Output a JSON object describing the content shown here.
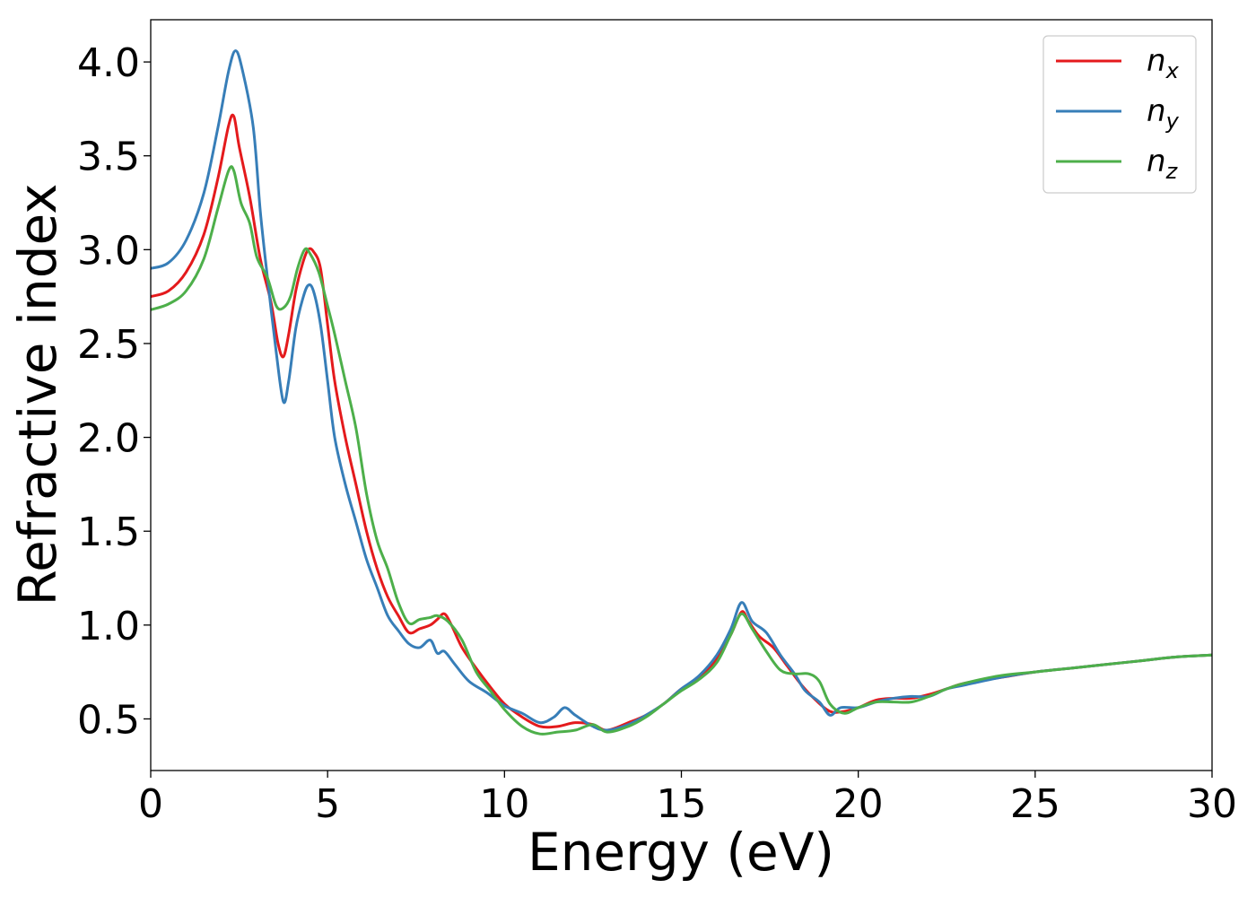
{
  "chart_data": {
    "type": "line",
    "xlabel": "Energy (eV)",
    "ylabel": "Refractive index",
    "xlim": [
      0,
      30
    ],
    "ylim": [
      0.225,
      4.225
    ],
    "xticks": [
      0,
      5,
      10,
      15,
      20,
      25,
      30
    ],
    "yticks": [
      0.5,
      1.0,
      1.5,
      2.0,
      2.5,
      3.0,
      3.5,
      4.0
    ],
    "grid": false,
    "legend_position": "top-right",
    "series": [
      {
        "name": "n",
        "subscript": "x",
        "color": "#e41a1c",
        "points": [
          [
            0,
            2.75
          ],
          [
            0.5,
            2.78
          ],
          [
            1.0,
            2.88
          ],
          [
            1.5,
            3.08
          ],
          [
            1.9,
            3.38
          ],
          [
            2.2,
            3.66
          ],
          [
            2.35,
            3.71
          ],
          [
            2.5,
            3.55
          ],
          [
            2.8,
            3.28
          ],
          [
            3.1,
            2.95
          ],
          [
            3.4,
            2.72
          ],
          [
            3.6,
            2.5
          ],
          [
            3.75,
            2.43
          ],
          [
            3.9,
            2.55
          ],
          [
            4.1,
            2.78
          ],
          [
            4.3,
            2.93
          ],
          [
            4.45,
            3.0
          ],
          [
            4.6,
            2.99
          ],
          [
            4.8,
            2.9
          ],
          [
            5.0,
            2.6
          ],
          [
            5.2,
            2.3
          ],
          [
            5.5,
            2.0
          ],
          [
            5.8,
            1.75
          ],
          [
            6.1,
            1.5
          ],
          [
            6.4,
            1.3
          ],
          [
            6.7,
            1.15
          ],
          [
            7.0,
            1.05
          ],
          [
            7.3,
            0.96
          ],
          [
            7.6,
            0.98
          ],
          [
            7.9,
            1.0
          ],
          [
            8.1,
            1.03
          ],
          [
            8.3,
            1.06
          ],
          [
            8.5,
            1.0
          ],
          [
            8.8,
            0.88
          ],
          [
            9.2,
            0.77
          ],
          [
            9.6,
            0.67
          ],
          [
            10.0,
            0.58
          ],
          [
            10.5,
            0.51
          ],
          [
            11.0,
            0.46
          ],
          [
            11.5,
            0.46
          ],
          [
            12.0,
            0.48
          ],
          [
            12.5,
            0.47
          ],
          [
            12.9,
            0.44
          ],
          [
            13.5,
            0.48
          ],
          [
            14.0,
            0.52
          ],
          [
            14.5,
            0.58
          ],
          [
            15.0,
            0.66
          ],
          [
            15.5,
            0.72
          ],
          [
            16.0,
            0.82
          ],
          [
            16.4,
            0.95
          ],
          [
            16.7,
            1.07
          ],
          [
            16.9,
            1.02
          ],
          [
            17.2,
            0.94
          ],
          [
            17.6,
            0.88
          ],
          [
            18.0,
            0.78
          ],
          [
            18.4,
            0.68
          ],
          [
            18.8,
            0.6
          ],
          [
            19.2,
            0.54
          ],
          [
            19.6,
            0.54
          ],
          [
            20.0,
            0.56
          ],
          [
            20.5,
            0.6
          ],
          [
            21.0,
            0.61
          ],
          [
            21.5,
            0.61
          ],
          [
            22.0,
            0.63
          ],
          [
            22.5,
            0.66
          ],
          [
            23.0,
            0.69
          ],
          [
            24.0,
            0.72
          ],
          [
            25.0,
            0.75
          ],
          [
            26.0,
            0.77
          ],
          [
            27.0,
            0.79
          ],
          [
            28.0,
            0.81
          ],
          [
            29.0,
            0.83
          ],
          [
            30.0,
            0.84
          ]
        ]
      },
      {
        "name": "n",
        "subscript": "y",
        "color": "#377eb8",
        "points": [
          [
            0,
            2.9
          ],
          [
            0.5,
            2.93
          ],
          [
            1.0,
            3.05
          ],
          [
            1.5,
            3.3
          ],
          [
            1.9,
            3.65
          ],
          [
            2.2,
            3.95
          ],
          [
            2.4,
            4.06
          ],
          [
            2.6,
            3.95
          ],
          [
            2.9,
            3.65
          ],
          [
            3.1,
            3.2
          ],
          [
            3.3,
            2.85
          ],
          [
            3.55,
            2.45
          ],
          [
            3.75,
            2.19
          ],
          [
            3.9,
            2.3
          ],
          [
            4.1,
            2.58
          ],
          [
            4.3,
            2.74
          ],
          [
            4.45,
            2.81
          ],
          [
            4.6,
            2.78
          ],
          [
            4.8,
            2.6
          ],
          [
            5.0,
            2.3
          ],
          [
            5.2,
            2.0
          ],
          [
            5.5,
            1.75
          ],
          [
            5.8,
            1.55
          ],
          [
            6.1,
            1.35
          ],
          [
            6.4,
            1.2
          ],
          [
            6.7,
            1.05
          ],
          [
            7.0,
            0.97
          ],
          [
            7.3,
            0.9
          ],
          [
            7.6,
            0.88
          ],
          [
            7.9,
            0.92
          ],
          [
            8.1,
            0.85
          ],
          [
            8.3,
            0.86
          ],
          [
            8.6,
            0.79
          ],
          [
            9.0,
            0.7
          ],
          [
            9.5,
            0.64
          ],
          [
            10.0,
            0.57
          ],
          [
            10.5,
            0.53
          ],
          [
            11.0,
            0.48
          ],
          [
            11.4,
            0.51
          ],
          [
            11.7,
            0.56
          ],
          [
            12.0,
            0.52
          ],
          [
            12.5,
            0.46
          ],
          [
            12.9,
            0.44
          ],
          [
            13.5,
            0.47
          ],
          [
            14.0,
            0.52
          ],
          [
            14.5,
            0.58
          ],
          [
            15.0,
            0.66
          ],
          [
            15.5,
            0.73
          ],
          [
            16.0,
            0.84
          ],
          [
            16.4,
            0.98
          ],
          [
            16.7,
            1.12
          ],
          [
            17.0,
            1.02
          ],
          [
            17.4,
            0.96
          ],
          [
            17.8,
            0.84
          ],
          [
            18.2,
            0.74
          ],
          [
            18.5,
            0.65
          ],
          [
            18.9,
            0.59
          ],
          [
            19.2,
            0.52
          ],
          [
            19.5,
            0.56
          ],
          [
            20.0,
            0.56
          ],
          [
            20.5,
            0.59
          ],
          [
            21.0,
            0.61
          ],
          [
            21.5,
            0.62
          ],
          [
            22.0,
            0.62
          ],
          [
            22.5,
            0.66
          ],
          [
            23.0,
            0.68
          ],
          [
            24.0,
            0.72
          ],
          [
            25.0,
            0.75
          ],
          [
            26.0,
            0.77
          ],
          [
            27.0,
            0.79
          ],
          [
            28.0,
            0.81
          ],
          [
            29.0,
            0.83
          ],
          [
            30.0,
            0.84
          ]
        ]
      },
      {
        "name": "n",
        "subscript": "z",
        "color": "#4daf4a",
        "points": [
          [
            0,
            2.68
          ],
          [
            0.5,
            2.71
          ],
          [
            1.0,
            2.78
          ],
          [
            1.5,
            2.95
          ],
          [
            1.9,
            3.22
          ],
          [
            2.2,
            3.42
          ],
          [
            2.35,
            3.42
          ],
          [
            2.55,
            3.25
          ],
          [
            2.8,
            3.14
          ],
          [
            3.0,
            2.96
          ],
          [
            3.3,
            2.85
          ],
          [
            3.55,
            2.7
          ],
          [
            3.75,
            2.69
          ],
          [
            3.95,
            2.75
          ],
          [
            4.15,
            2.9
          ],
          [
            4.35,
            3.0
          ],
          [
            4.5,
            2.98
          ],
          [
            4.75,
            2.88
          ],
          [
            5.0,
            2.7
          ],
          [
            5.2,
            2.55
          ],
          [
            5.5,
            2.3
          ],
          [
            5.8,
            2.05
          ],
          [
            6.1,
            1.7
          ],
          [
            6.4,
            1.45
          ],
          [
            6.7,
            1.3
          ],
          [
            7.0,
            1.12
          ],
          [
            7.3,
            1.01
          ],
          [
            7.6,
            1.03
          ],
          [
            7.9,
            1.04
          ],
          [
            8.1,
            1.05
          ],
          [
            8.4,
            1.02
          ],
          [
            8.8,
            0.92
          ],
          [
            9.2,
            0.75
          ],
          [
            9.6,
            0.65
          ],
          [
            10.0,
            0.55
          ],
          [
            10.5,
            0.46
          ],
          [
            11.0,
            0.42
          ],
          [
            11.5,
            0.43
          ],
          [
            12.0,
            0.44
          ],
          [
            12.5,
            0.47
          ],
          [
            12.9,
            0.43
          ],
          [
            13.5,
            0.46
          ],
          [
            14.0,
            0.51
          ],
          [
            14.5,
            0.58
          ],
          [
            15.0,
            0.65
          ],
          [
            15.5,
            0.71
          ],
          [
            16.0,
            0.8
          ],
          [
            16.4,
            0.95
          ],
          [
            16.7,
            1.06
          ],
          [
            17.0,
            0.98
          ],
          [
            17.4,
            0.86
          ],
          [
            17.8,
            0.76
          ],
          [
            18.2,
            0.74
          ],
          [
            18.6,
            0.74
          ],
          [
            18.9,
            0.7
          ],
          [
            19.2,
            0.58
          ],
          [
            19.6,
            0.53
          ],
          [
            20.0,
            0.56
          ],
          [
            20.5,
            0.59
          ],
          [
            21.0,
            0.59
          ],
          [
            21.5,
            0.59
          ],
          [
            22.0,
            0.62
          ],
          [
            22.5,
            0.66
          ],
          [
            23.0,
            0.69
          ],
          [
            24.0,
            0.73
          ],
          [
            25.0,
            0.75
          ],
          [
            26.0,
            0.77
          ],
          [
            27.0,
            0.79
          ],
          [
            28.0,
            0.81
          ],
          [
            29.0,
            0.83
          ],
          [
            30.0,
            0.84
          ]
        ]
      }
    ]
  }
}
